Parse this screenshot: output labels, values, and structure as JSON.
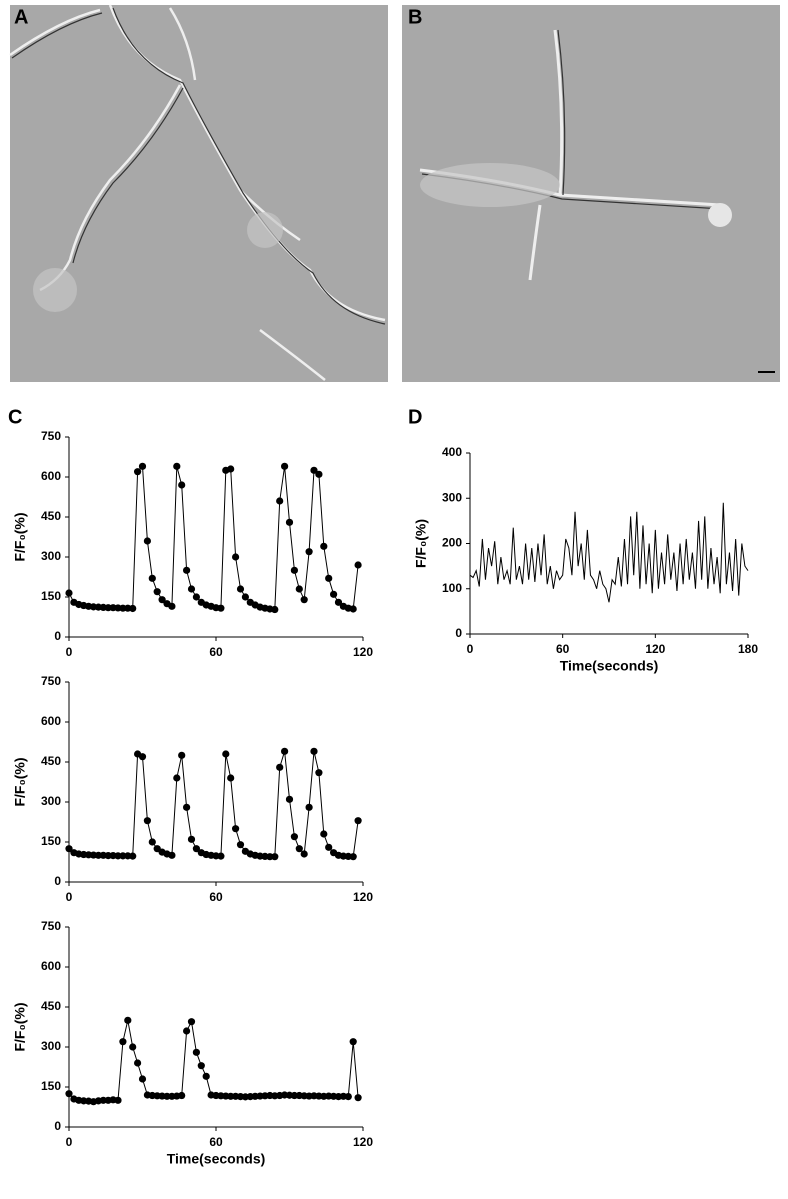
{
  "panel_labels": {
    "a": "A",
    "b": "B",
    "c": "C",
    "d": "D"
  },
  "chart_data": [
    {
      "type": "line",
      "markers": true,
      "color": "#000000",
      "ylabel": "F/F₀(%)",
      "xlim": [
        0,
        120
      ],
      "xticks": [
        0,
        60,
        120
      ],
      "ylim": [
        0,
        750
      ],
      "yticks": [
        0,
        150,
        300,
        450,
        600,
        750
      ],
      "x": [
        0,
        2,
        4,
        6,
        8,
        10,
        12,
        14,
        16,
        18,
        20,
        22,
        24,
        26,
        28,
        30,
        32,
        34,
        36,
        38,
        40,
        42,
        44,
        46,
        48,
        50,
        52,
        54,
        56,
        58,
        60,
        62,
        64,
        66,
        68,
        70,
        72,
        74,
        76,
        78,
        80,
        82,
        84,
        86,
        88,
        90,
        92,
        94,
        96,
        98,
        100,
        102,
        104,
        106,
        108,
        110,
        112,
        114,
        116,
        118
      ],
      "values": [
        165,
        130,
        122,
        118,
        115,
        113,
        112,
        111,
        110,
        110,
        109,
        108,
        108,
        107,
        620,
        640,
        360,
        220,
        170,
        140,
        125,
        115,
        640,
        570,
        250,
        180,
        150,
        130,
        120,
        115,
        110,
        108,
        625,
        630,
        300,
        180,
        150,
        130,
        120,
        112,
        108,
        105,
        103,
        510,
        640,
        430,
        250,
        180,
        140,
        320,
        625,
        610,
        340,
        220,
        160,
        130,
        115,
        108,
        105,
        270
      ]
    },
    {
      "type": "line",
      "markers": true,
      "color": "#000000",
      "ylabel": "F/F₀(%)",
      "xlim": [
        0,
        120
      ],
      "xticks": [
        0,
        60,
        120
      ],
      "ylim": [
        0,
        750
      ],
      "yticks": [
        0,
        150,
        300,
        450,
        600,
        750
      ],
      "x": [
        0,
        2,
        4,
        6,
        8,
        10,
        12,
        14,
        16,
        18,
        20,
        22,
        24,
        26,
        28,
        30,
        32,
        34,
        36,
        38,
        40,
        42,
        44,
        46,
        48,
        50,
        52,
        54,
        56,
        58,
        60,
        62,
        64,
        66,
        68,
        70,
        72,
        74,
        76,
        78,
        80,
        82,
        84,
        86,
        88,
        90,
        92,
        94,
        96,
        98,
        100,
        102,
        104,
        106,
        108,
        110,
        112,
        114,
        116,
        118
      ],
      "values": [
        125,
        110,
        105,
        103,
        102,
        101,
        100,
        100,
        99,
        99,
        98,
        98,
        98,
        97,
        480,
        470,
        230,
        150,
        125,
        112,
        105,
        100,
        390,
        475,
        280,
        160,
        125,
        110,
        103,
        100,
        98,
        97,
        480,
        390,
        200,
        140,
        115,
        105,
        100,
        97,
        96,
        95,
        95,
        430,
        490,
        310,
        170,
        125,
        105,
        280,
        490,
        410,
        180,
        130,
        110,
        100,
        97,
        96,
        95,
        230
      ]
    },
    {
      "type": "line",
      "markers": true,
      "color": "#000000",
      "ylabel": "F/F₀(%)",
      "xlabel": "Time(seconds)",
      "xlim": [
        0,
        120
      ],
      "xticks": [
        0,
        60,
        120
      ],
      "ylim": [
        0,
        750
      ],
      "yticks": [
        0,
        150,
        300,
        450,
        600,
        750
      ],
      "x": [
        0,
        2,
        4,
        6,
        8,
        10,
        12,
        14,
        16,
        18,
        20,
        22,
        24,
        26,
        28,
        30,
        32,
        34,
        36,
        38,
        40,
        42,
        44,
        46,
        48,
        50,
        52,
        54,
        56,
        58,
        60,
        62,
        64,
        66,
        68,
        70,
        72,
        74,
        76,
        78,
        80,
        82,
        84,
        86,
        88,
        90,
        92,
        94,
        96,
        98,
        100,
        102,
        104,
        106,
        108,
        110,
        112,
        114,
        116,
        118
      ],
      "values": [
        125,
        105,
        100,
        98,
        97,
        95,
        98,
        100,
        100,
        102,
        100,
        320,
        400,
        300,
        240,
        180,
        120,
        118,
        117,
        116,
        115,
        115,
        116,
        118,
        360,
        395,
        280,
        230,
        190,
        120,
        118,
        117,
        116,
        115,
        115,
        114,
        113,
        114,
        115,
        116,
        117,
        118,
        117,
        118,
        120,
        119,
        118,
        118,
        117,
        116,
        117,
        116,
        115,
        116,
        115,
        114,
        115,
        114,
        320,
        110
      ]
    },
    {
      "type": "line",
      "markers": false,
      "color": "#000000",
      "ylabel": "F/F₀(%)",
      "xlabel": "Time(seconds)",
      "xlim": [
        0,
        180
      ],
      "xticks": [
        0,
        60,
        120,
        180
      ],
      "ylim": [
        0,
        400
      ],
      "yticks": [
        0,
        100,
        200,
        300,
        400
      ],
      "x": [
        0,
        2,
        4,
        6,
        8,
        10,
        12,
        14,
        16,
        18,
        20,
        22,
        24,
        26,
        28,
        30,
        32,
        34,
        36,
        38,
        40,
        42,
        44,
        46,
        48,
        50,
        52,
        54,
        56,
        58,
        60,
        62,
        64,
        66,
        68,
        70,
        72,
        74,
        76,
        78,
        80,
        82,
        84,
        86,
        88,
        90,
        92,
        94,
        96,
        98,
        100,
        102,
        104,
        106,
        108,
        110,
        112,
        114,
        116,
        118,
        120,
        122,
        124,
        126,
        128,
        130,
        132,
        134,
        136,
        138,
        140,
        142,
        144,
        146,
        148,
        150,
        152,
        154,
        156,
        158,
        160,
        162,
        164,
        166,
        168,
        170,
        172,
        174,
        176,
        178,
        180
      ],
      "values": [
        130,
        125,
        140,
        105,
        210,
        120,
        190,
        150,
        205,
        110,
        170,
        120,
        140,
        110,
        235,
        120,
        150,
        110,
        200,
        120,
        190,
        115,
        200,
        130,
        220,
        110,
        150,
        100,
        140,
        120,
        130,
        210,
        190,
        130,
        270,
        150,
        200,
        120,
        230,
        130,
        120,
        100,
        140,
        110,
        100,
        70,
        120,
        110,
        170,
        105,
        210,
        110,
        260,
        130,
        270,
        100,
        240,
        110,
        200,
        90,
        230,
        100,
        180,
        110,
        220,
        120,
        180,
        95,
        200,
        110,
        210,
        120,
        180,
        100,
        250,
        120,
        260,
        100,
        190,
        110,
        170,
        90,
        290,
        110,
        180,
        95,
        210,
        85,
        200,
        150,
        140
      ]
    }
  ]
}
